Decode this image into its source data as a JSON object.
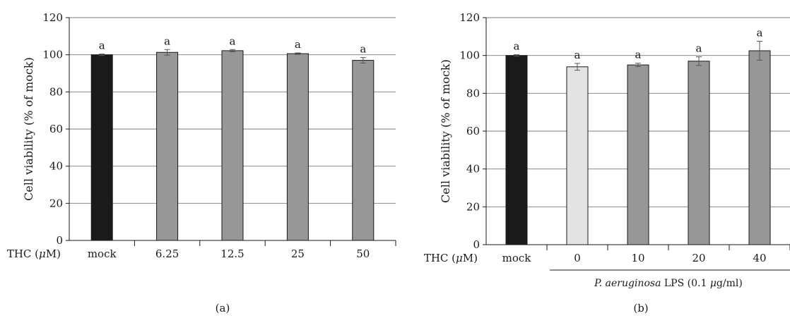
{
  "chart_data": [
    {
      "panel": "(a)",
      "type": "bar",
      "ylabel": "Cell viability (% of mock)",
      "ylim": [
        0,
        120
      ],
      "yticks": [
        0,
        20,
        40,
        60,
        80,
        100,
        120
      ],
      "grid": true,
      "x_prefix": "THC (μM)",
      "categories": [
        "mock",
        "6.25",
        "12.5",
        "25",
        "50"
      ],
      "values": [
        100,
        101.3,
        102.2,
        100.6,
        97
      ],
      "errors": [
        0.4,
        1.5,
        0.6,
        0.4,
        1.5
      ],
      "labels": [
        "a",
        "a",
        "a",
        "a",
        "a"
      ],
      "colors": [
        "#1a1a1a",
        "#979797",
        "#979797",
        "#979797",
        "#979797"
      ]
    },
    {
      "panel": "(b)",
      "type": "bar",
      "ylabel": "Cell viability (% of mock)",
      "ylim": [
        0,
        120
      ],
      "yticks": [
        0,
        20,
        40,
        60,
        80,
        100,
        120
      ],
      "grid": true,
      "x_prefix": "THC (μM)",
      "categories": [
        "mock",
        "0",
        "10",
        "20",
        "40"
      ],
      "values": [
        100,
        94,
        95,
        97,
        102.5
      ],
      "errors": [
        0.4,
        1.8,
        0.9,
        2.3,
        5
      ],
      "labels": [
        "a",
        "a",
        "a",
        "a",
        "a"
      ],
      "colors": [
        "#1a1a1a",
        "#e3e3e3",
        "#979797",
        "#979797",
        "#979797"
      ],
      "group_label": "P. aeruginosa LPS (0.1 μg/ml)"
    }
  ]
}
